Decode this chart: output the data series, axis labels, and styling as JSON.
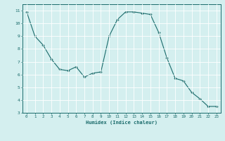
{
  "x": [
    0,
    1,
    2,
    3,
    4,
    5,
    6,
    7,
    8,
    9,
    10,
    11,
    12,
    13,
    14,
    15,
    16,
    17,
    18,
    19,
    20,
    21,
    22,
    23
  ],
  "y": [
    10.9,
    9.0,
    8.3,
    7.2,
    6.4,
    6.3,
    6.6,
    5.8,
    6.1,
    6.2,
    9.0,
    10.3,
    10.9,
    10.9,
    10.8,
    10.7,
    9.3,
    7.3,
    5.7,
    5.5,
    4.6,
    4.1,
    3.5,
    3.5
  ],
  "xlabel": "Humidex (Indice chaleur)",
  "ylabel": "",
  "bg_color": "#d4efef",
  "grid_color": "#ffffff",
  "line_color": "#1a6b6b",
  "marker_color": "#1a6b6b",
  "xlim": [
    -0.5,
    23.5
  ],
  "ylim": [
    3,
    11.5
  ],
  "yticks": [
    3,
    4,
    5,
    6,
    7,
    8,
    9,
    10,
    11
  ],
  "xticks": [
    0,
    1,
    2,
    3,
    4,
    5,
    6,
    7,
    8,
    9,
    10,
    11,
    12,
    13,
    14,
    15,
    16,
    17,
    18,
    19,
    20,
    21,
    22,
    23
  ],
  "title": ""
}
